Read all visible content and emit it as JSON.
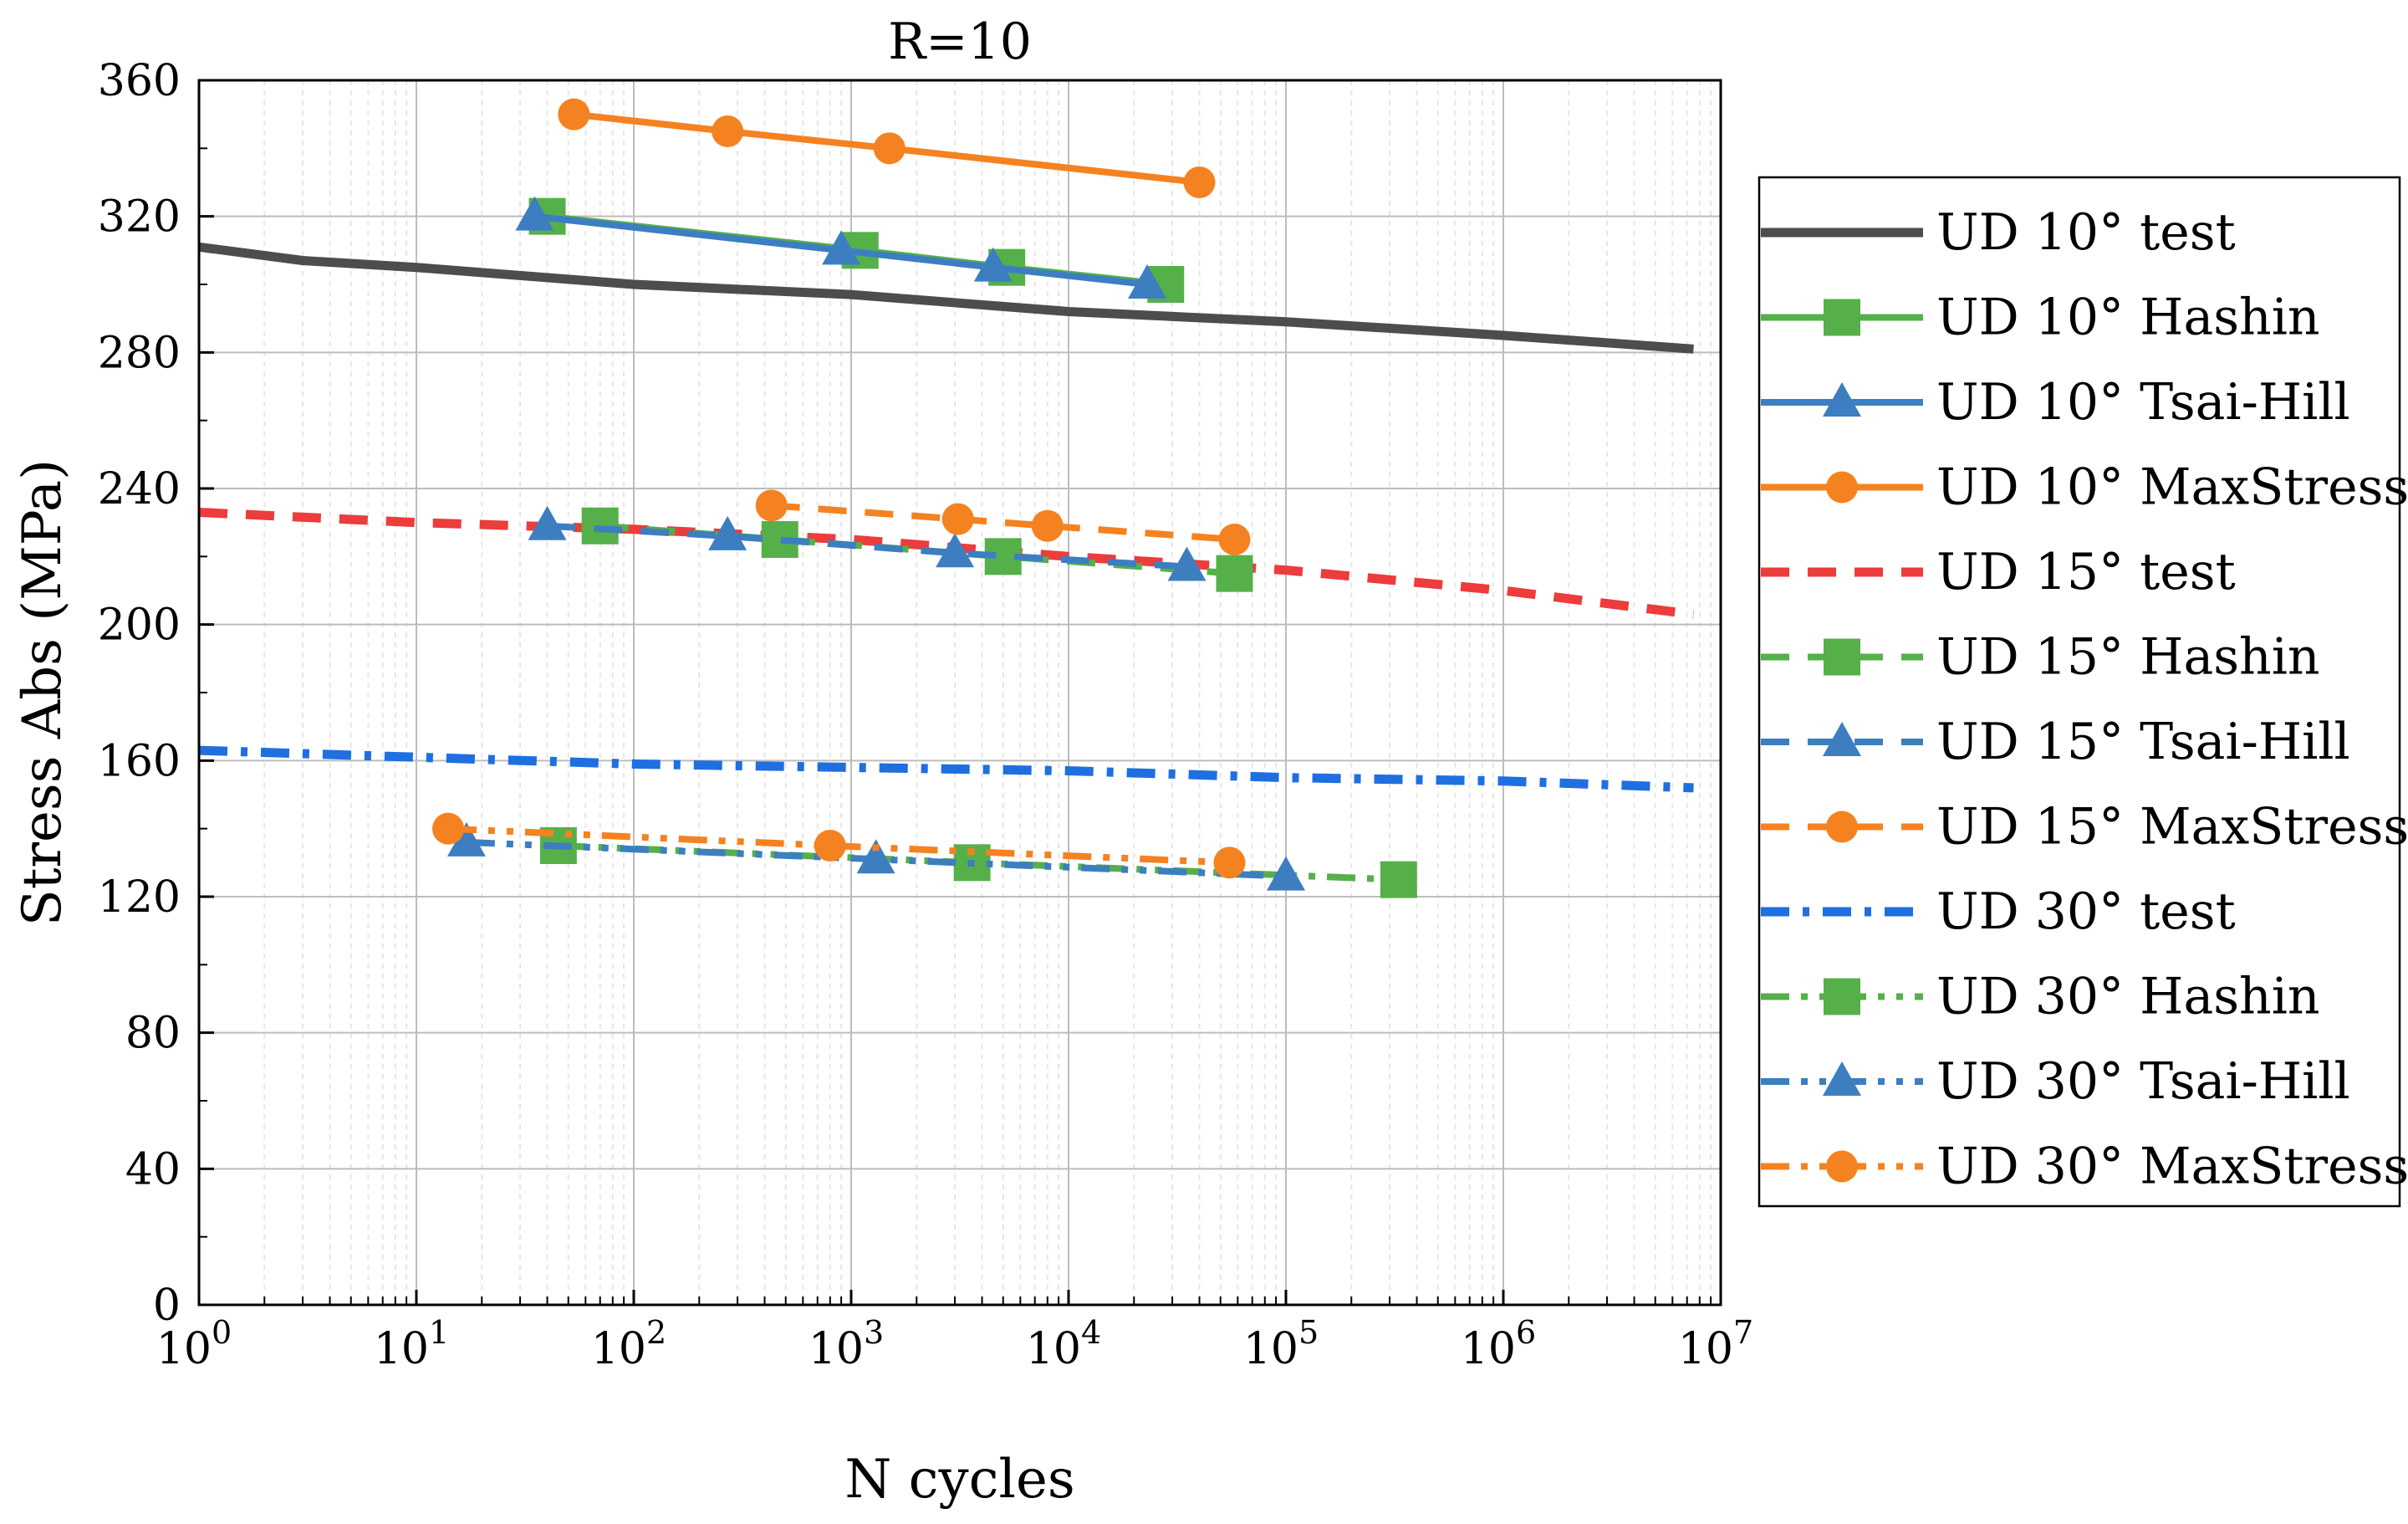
{
  "chart_data": {
    "type": "line",
    "title": "R=10",
    "xlabel": "N cycles",
    "ylabel": "Stress Abs (MPa)",
    "xscale": "log",
    "xlim": [
      1,
      10000000
    ],
    "ylim": [
      0,
      360
    ],
    "xticks": [
      {
        "value": 1,
        "base": "10",
        "exp": "0"
      },
      {
        "value": 10,
        "base": "10",
        "exp": "1"
      },
      {
        "value": 100,
        "base": "10",
        "exp": "2"
      },
      {
        "value": 1000,
        "base": "10",
        "exp": "3"
      },
      {
        "value": 10000,
        "base": "10",
        "exp": "4"
      },
      {
        "value": 100000,
        "base": "10",
        "exp": "5"
      },
      {
        "value": 1000000,
        "base": "10",
        "exp": "6"
      },
      {
        "value": 10000000,
        "base": "10",
        "exp": "7"
      }
    ],
    "yticks": [
      "0",
      "40",
      "80",
      "120",
      "160",
      "200",
      "240",
      "280",
      "320",
      "360"
    ],
    "grid": true,
    "legend_position": "right",
    "series": [
      {
        "name": "UD 10° test",
        "color": "#4d4d4d",
        "dash": "solid",
        "marker": "none",
        "x": [
          1,
          3,
          10,
          100,
          1000,
          10000,
          100000,
          1000000,
          7500000
        ],
        "y": [
          311,
          307,
          305,
          300,
          297,
          292,
          289,
          285,
          281
        ]
      },
      {
        "name": "UD 10° Hashin",
        "color": "#55b04a",
        "dash": "solid",
        "marker": "square",
        "x": [
          40,
          1100,
          5200,
          28000
        ],
        "y": [
          320,
          310,
          305,
          300
        ]
      },
      {
        "name": "UD 10° Tsai-Hill",
        "color": "#3d7ec0",
        "dash": "solid",
        "marker": "triangle",
        "x": [
          35,
          900,
          4500,
          23000
        ],
        "y": [
          320,
          310,
          305,
          300
        ]
      },
      {
        "name": "UD 10° MaxStress",
        "color": "#f58220",
        "dash": "solid",
        "marker": "circle",
        "x": [
          53,
          270,
          1500,
          40000
        ],
        "y": [
          350,
          345,
          340,
          330
        ]
      },
      {
        "name": "UD 15° test",
        "color": "#ec3c3c",
        "dash": "dash",
        "marker": "none",
        "x": [
          1,
          10,
          100,
          1000,
          10000,
          100000,
          1000000,
          7500000
        ],
        "y": [
          233,
          230,
          228,
          225,
          220,
          216,
          210,
          203
        ]
      },
      {
        "name": "UD 15° Hashin",
        "color": "#55b04a",
        "dash": "dash",
        "marker": "square",
        "x": [
          70,
          470,
          5000,
          58000
        ],
        "y": [
          229,
          225,
          220,
          215
        ]
      },
      {
        "name": "UD 15° Tsai-Hill",
        "color": "#3d7ec0",
        "dash": "dash",
        "marker": "triangle",
        "x": [
          40,
          270,
          3000,
          35000
        ],
        "y": [
          229,
          226,
          221,
          217
        ]
      },
      {
        "name": "UD 15° MaxStress",
        "color": "#f58220",
        "dash": "dash",
        "marker": "circle",
        "x": [
          430,
          3100,
          8000,
          58000
        ],
        "y": [
          235,
          231,
          229,
          225
        ]
      },
      {
        "name": "UD 30° test",
        "color": "#1f6fe0",
        "dash": "dashdot",
        "marker": "none",
        "x": [
          1,
          10,
          100,
          1000,
          10000,
          100000,
          1000000,
          7500000
        ],
        "y": [
          163,
          161,
          159,
          158,
          157,
          155,
          154,
          152
        ]
      },
      {
        "name": "UD 30° Hashin",
        "color": "#55b04a",
        "dash": "dashdotdot",
        "marker": "square",
        "x": [
          45,
          3600,
          330000
        ],
        "y": [
          135,
          130,
          125
        ]
      },
      {
        "name": "UD 30° Tsai-Hill",
        "color": "#3d7ec0",
        "dash": "dashdotdot",
        "marker": "triangle",
        "x": [
          17,
          1300,
          100000
        ],
        "y": [
          136,
          131,
          126
        ]
      },
      {
        "name": "UD 30° MaxStress",
        "color": "#f58220",
        "dash": "dashdotdot",
        "marker": "circle",
        "x": [
          14,
          800,
          55000
        ],
        "y": [
          140,
          135,
          130
        ]
      }
    ]
  }
}
